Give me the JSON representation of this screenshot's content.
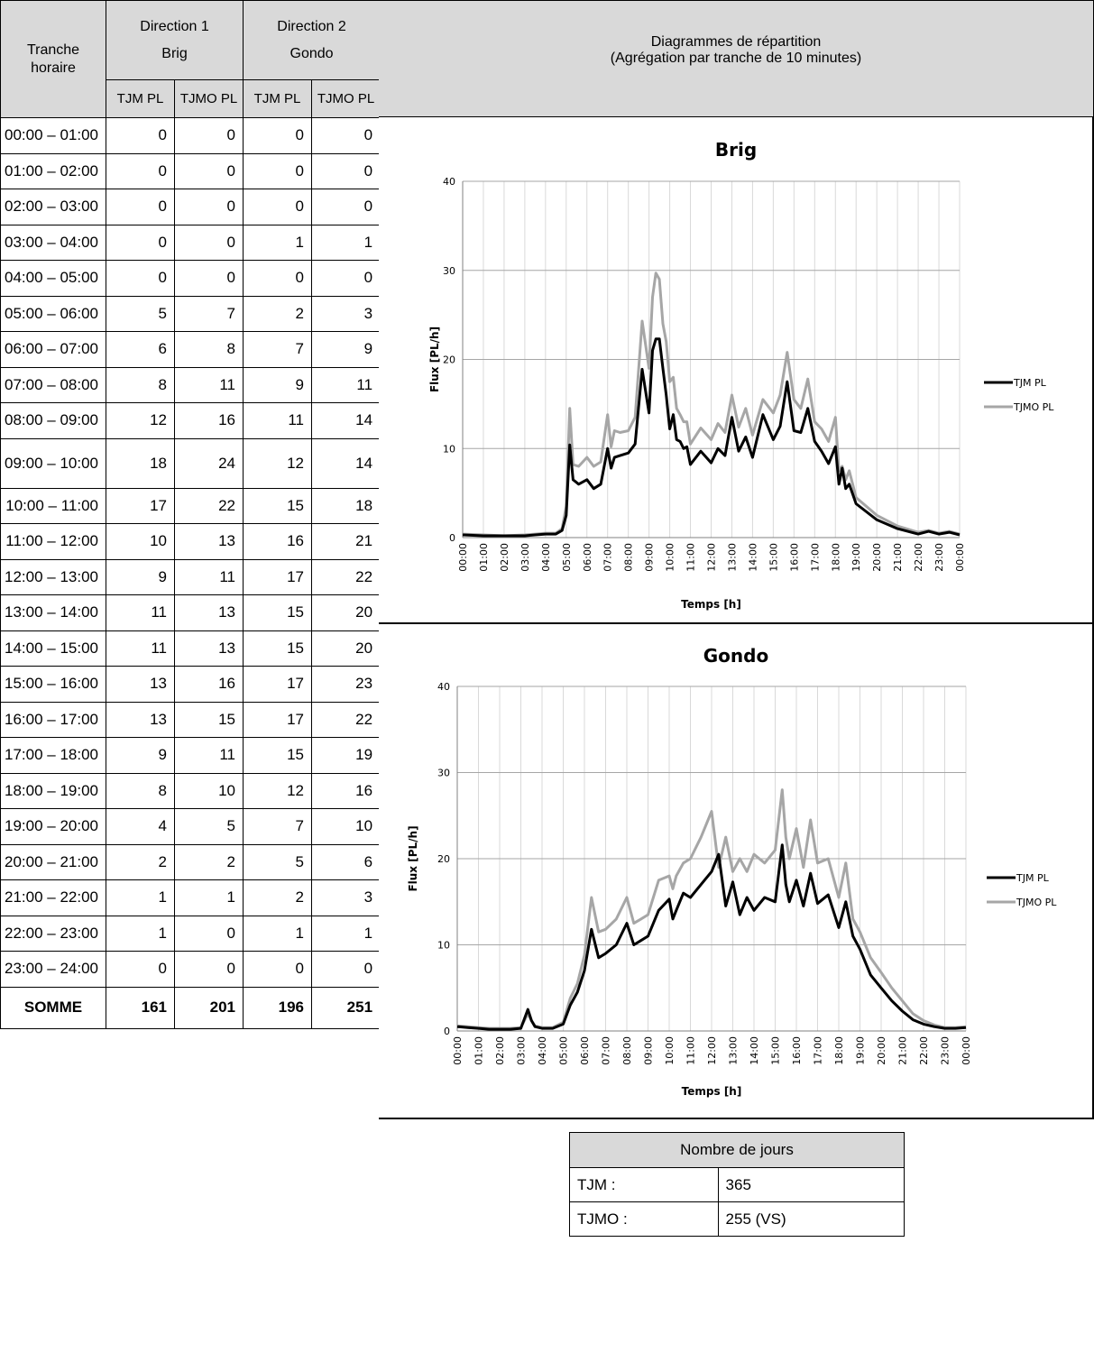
{
  "table": {
    "header_tranche": "Tranche horaire",
    "dir1_label": "Direction 1",
    "dir1_name": "Brig",
    "dir2_label": "Direction 2",
    "dir2_name": "Gondo",
    "sub_headers": [
      "TJM PL",
      "TJMO PL",
      "TJM PL",
      "TJMO PL"
    ],
    "rows": [
      {
        "time": "00:00 – 01:00",
        "v": [
          "0",
          "0",
          "0",
          "0"
        ]
      },
      {
        "time": "01:00 – 02:00",
        "v": [
          "0",
          "0",
          "0",
          "0"
        ]
      },
      {
        "time": "02:00 – 03:00",
        "v": [
          "0",
          "0",
          "0",
          "0"
        ]
      },
      {
        "time": "03:00 – 04:00",
        "v": [
          "0",
          "0",
          "1",
          "1"
        ]
      },
      {
        "time": "04:00 – 05:00",
        "v": [
          "0",
          "0",
          "0",
          "0"
        ]
      },
      {
        "time": "05:00 – 06:00",
        "v": [
          "5",
          "7",
          "2",
          "3"
        ]
      },
      {
        "time": "06:00 – 07:00",
        "v": [
          "6",
          "8",
          "7",
          "9"
        ]
      },
      {
        "time": "07:00 – 08:00",
        "v": [
          "8",
          "11",
          "9",
          "11"
        ]
      },
      {
        "time": "08:00 – 09:00",
        "v": [
          "12",
          "16",
          "11",
          "14"
        ]
      },
      {
        "time": "09:00 – 10:00",
        "v": [
          "18",
          "24",
          "12",
          "14"
        ]
      },
      {
        "time": "10:00 – 11:00",
        "v": [
          "17",
          "22",
          "15",
          "18"
        ]
      },
      {
        "time": "11:00 – 12:00",
        "v": [
          "10",
          "13",
          "16",
          "21"
        ]
      },
      {
        "time": "12:00 – 13:00",
        "v": [
          "9",
          "11",
          "17",
          "22"
        ]
      },
      {
        "time": "13:00 – 14:00",
        "v": [
          "11",
          "13",
          "15",
          "20"
        ]
      },
      {
        "time": "14:00 – 15:00",
        "v": [
          "11",
          "13",
          "15",
          "20"
        ]
      },
      {
        "time": "15:00 – 16:00",
        "v": [
          "13",
          "16",
          "17",
          "23"
        ]
      },
      {
        "time": "16:00 – 17:00",
        "v": [
          "13",
          "15",
          "17",
          "22"
        ]
      },
      {
        "time": "17:00 – 18:00",
        "v": [
          "9",
          "11",
          "15",
          "19"
        ]
      },
      {
        "time": "18:00 – 19:00",
        "v": [
          "8",
          "10",
          "12",
          "16"
        ]
      },
      {
        "time": "19:00 – 20:00",
        "v": [
          "4",
          "5",
          "7",
          "10"
        ]
      },
      {
        "time": "20:00 – 21:00",
        "v": [
          "2",
          "2",
          "5",
          "6"
        ]
      },
      {
        "time": "21:00 – 22:00",
        "v": [
          "1",
          "1",
          "2",
          "3"
        ]
      },
      {
        "time": "22:00 – 23:00",
        "v": [
          "1",
          "0",
          "1",
          "1"
        ]
      },
      {
        "time": "23:00 – 24:00",
        "v": [
          "0",
          "0",
          "0",
          "0"
        ]
      }
    ],
    "total_label": "SOMME",
    "totals": [
      "161",
      "201",
      "196",
      "251"
    ]
  },
  "charts_header": {
    "title": "Diagrammes de répartition",
    "subtitle": "(Agrégation par tranche de 10 minutes)"
  },
  "days_box": {
    "title": "Nombre de jours",
    "rows": [
      {
        "label": "TJM :",
        "value": "365"
      },
      {
        "label": "TJMO :",
        "value": "255 (VS)"
      }
    ]
  },
  "chart_data": [
    {
      "type": "line",
      "title": "Brig",
      "xlabel": "Temps [h]",
      "ylabel": "Flux [PL/h]",
      "ylim": [
        0,
        40
      ],
      "yticks": [
        "0",
        "10",
        "20",
        "30",
        "40"
      ],
      "xticks": [
        "00:00",
        "01:00",
        "02:00",
        "03:00",
        "04:00",
        "05:00",
        "06:00",
        "07:00",
        "08:00",
        "09:00",
        "10:00",
        "11:00",
        "12:00",
        "13:00",
        "14:00",
        "15:00",
        "16:00",
        "17:00",
        "18:00",
        "19:00",
        "20:00",
        "21:00",
        "22:00",
        "23:00",
        "00:00"
      ],
      "grid": "vertical and horizontal",
      "legend": "right",
      "series": [
        {
          "name": "TJM PL",
          "color": "#000000",
          "x": [
            0,
            1,
            2,
            3,
            3.5,
            4,
            4.5,
            4.8,
            5,
            5.17,
            5.33,
            5.6,
            6,
            6.33,
            6.67,
            7,
            7.17,
            7.33,
            7.6,
            8,
            8.33,
            8.67,
            9,
            9.17,
            9.33,
            9.5,
            9.67,
            9.83,
            10,
            10.17,
            10.33,
            10.5,
            10.67,
            10.83,
            11,
            11.5,
            12,
            12.33,
            12.67,
            13,
            13.33,
            13.67,
            14,
            14.5,
            15,
            15.33,
            15.67,
            16,
            16.33,
            16.67,
            17,
            17.33,
            17.67,
            18,
            18.17,
            18.33,
            18.5,
            18.67,
            19,
            20,
            21,
            22,
            22.5,
            23,
            23.5,
            24
          ],
          "y": [
            0.3,
            0.2,
            0.2,
            0.2,
            0.3,
            0.4,
            0.4,
            0.8,
            2.5,
            10.4,
            6.5,
            6,
            6.5,
            5.5,
            6,
            10,
            7.8,
            9,
            9.2,
            9.5,
            10.5,
            18.9,
            14,
            21,
            22.3,
            22.3,
            19,
            16,
            12.2,
            13.8,
            11,
            10.8,
            10,
            10.2,
            8.2,
            9.7,
            8.4,
            10,
            9.2,
            13.5,
            9.7,
            11.3,
            9,
            13.8,
            11,
            12.5,
            17.5,
            12,
            11.8,
            14.5,
            10.8,
            9.7,
            8.3,
            10.2,
            6,
            7.8,
            5.5,
            6,
            3.8,
            2,
            1,
            0.4,
            0.7,
            0.4,
            0.6,
            0.3
          ]
        },
        {
          "name": "TJMO PL",
          "color": "#a6a6a6",
          "x": [
            0,
            1,
            2,
            3,
            3.5,
            4,
            4.5,
            4.8,
            5,
            5.17,
            5.33,
            5.6,
            6,
            6.33,
            6.67,
            7,
            7.17,
            7.33,
            7.6,
            8,
            8.33,
            8.67,
            9,
            9.17,
            9.33,
            9.5,
            9.67,
            9.83,
            10,
            10.17,
            10.33,
            10.5,
            10.67,
            10.83,
            11,
            11.5,
            12,
            12.33,
            12.67,
            13,
            13.33,
            13.67,
            14,
            14.5,
            15,
            15.33,
            15.67,
            16,
            16.33,
            16.67,
            17,
            17.33,
            17.67,
            18,
            18.17,
            18.33,
            18.5,
            18.67,
            19,
            20,
            21,
            22,
            22.5,
            23,
            23.5,
            24
          ],
          "y": [
            0.4,
            0.3,
            0.2,
            0.3,
            0.4,
            0.5,
            0.5,
            1,
            3.5,
            14.5,
            8.2,
            8,
            9,
            8,
            8.5,
            13.8,
            10.2,
            12,
            11.8,
            12,
            13.5,
            24.3,
            19,
            27,
            29.7,
            29,
            24,
            22,
            17.5,
            18,
            14.5,
            13.8,
            13,
            13,
            10.5,
            12.3,
            11,
            12.8,
            11.8,
            16,
            12.4,
            14.5,
            11.5,
            15.5,
            14,
            16,
            20.8,
            15.5,
            14.5,
            17.8,
            13,
            12.2,
            10.8,
            13.5,
            7.5,
            8,
            6.5,
            7.5,
            4.5,
            2.5,
            1.3,
            0.6,
            0.8,
            0.5,
            0.7,
            0.4
          ]
        }
      ]
    },
    {
      "type": "line",
      "title": "Gondo",
      "xlabel": "Temps [h]",
      "ylabel": "Flux [PL/h]",
      "ylim": [
        0,
        40
      ],
      "yticks": [
        "0",
        "10",
        "20",
        "30",
        "40"
      ],
      "xticks": [
        "00:00",
        "01:00",
        "02:00",
        "03:00",
        "04:00",
        "05:00",
        "06:00",
        "07:00",
        "08:00",
        "09:00",
        "10:00",
        "11:00",
        "12:00",
        "13:00",
        "14:00",
        "15:00",
        "16:00",
        "17:00",
        "18:00",
        "19:00",
        "20:00",
        "21:00",
        "22:00",
        "23:00",
        "00:00"
      ],
      "grid": "vertical and horizontal",
      "legend": "right",
      "series": [
        {
          "name": "TJM PL",
          "color": "#000000",
          "x": [
            0,
            0.5,
            1,
            1.5,
            2,
            2.5,
            3,
            3.33,
            3.5,
            3.67,
            4,
            4.5,
            5,
            5.33,
            5.67,
            6,
            6.33,
            6.67,
            7,
            7.5,
            8,
            8.33,
            8.67,
            9,
            9.5,
            10,
            10.17,
            10.33,
            10.67,
            11,
            11.5,
            12,
            12.33,
            12.67,
            13,
            13.33,
            13.67,
            14,
            14.5,
            15,
            15.33,
            15.5,
            15.67,
            16,
            16.33,
            16.67,
            17,
            17.5,
            18,
            18.33,
            18.67,
            19,
            19.5,
            20,
            20.5,
            21,
            21.5,
            22,
            22.5,
            23,
            23.5,
            24
          ],
          "y": [
            0.5,
            0.4,
            0.3,
            0.2,
            0.2,
            0.2,
            0.3,
            2.5,
            1.2,
            0.5,
            0.3,
            0.3,
            0.8,
            3,
            4.5,
            7,
            11.8,
            8.5,
            9,
            10,
            12.5,
            10,
            10.5,
            11,
            14,
            15.3,
            13,
            14,
            16,
            15.5,
            17,
            18.5,
            20.5,
            14.5,
            17.3,
            13.5,
            15.5,
            14,
            15.5,
            15,
            21.6,
            17,
            15,
            17.5,
            14.5,
            18.3,
            14.8,
            15.8,
            12,
            15,
            11,
            9.5,
            6.5,
            5,
            3.5,
            2.3,
            1.3,
            0.8,
            0.5,
            0.3,
            0.3,
            0.4
          ]
        },
        {
          "name": "TJMO PL",
          "color": "#a6a6a6",
          "x": [
            0,
            0.5,
            1,
            1.5,
            2,
            2.5,
            3,
            3.33,
            3.5,
            3.67,
            4,
            4.5,
            5,
            5.33,
            5.67,
            6,
            6.33,
            6.67,
            7,
            7.5,
            8,
            8.33,
            8.67,
            9,
            9.5,
            10,
            10.17,
            10.33,
            10.67,
            11,
            11.5,
            12,
            12.33,
            12.67,
            13,
            13.33,
            13.67,
            14,
            14.5,
            15,
            15.33,
            15.5,
            15.67,
            16,
            16.33,
            16.67,
            17,
            17.5,
            18,
            18.33,
            18.67,
            19,
            19.5,
            20,
            20.5,
            21,
            21.5,
            22,
            22.5,
            23,
            23.5,
            24
          ],
          "y": [
            0.6,
            0.5,
            0.4,
            0.3,
            0.3,
            0.3,
            0.4,
            2,
            1.2,
            0.6,
            0.4,
            0.4,
            1,
            3.8,
            5.5,
            8.8,
            15.5,
            11.5,
            11.8,
            13,
            15.5,
            12.5,
            13,
            13.5,
            17.5,
            18,
            16.5,
            18,
            19.5,
            20,
            22.5,
            25.5,
            19,
            22.5,
            18.5,
            20,
            18.5,
            20.5,
            19.5,
            21,
            28,
            22.5,
            20,
            23.5,
            19,
            24.5,
            19.5,
            20,
            15.5,
            19.5,
            13,
            11.5,
            8.5,
            6.8,
            5,
            3.5,
            2,
            1.2,
            0.7,
            0.4,
            0.4,
            0.5
          ]
        }
      ]
    }
  ]
}
